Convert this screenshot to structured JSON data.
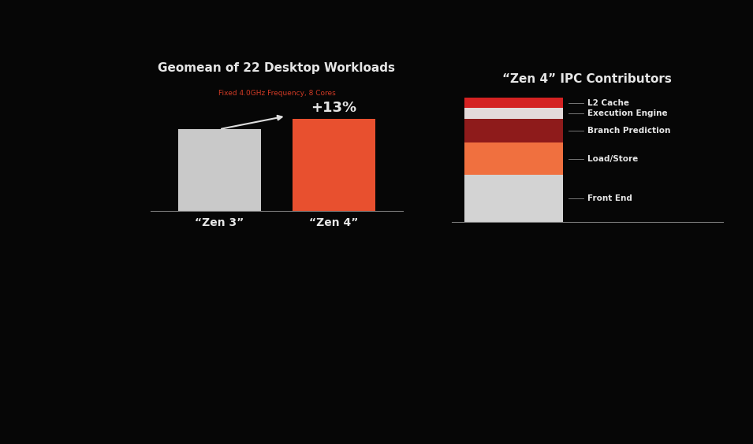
{
  "chart_data": [
    {
      "type": "bar",
      "title": "Geomean of 22 Desktop Workloads",
      "subtitle": "Fixed 4.0GHz Frequency, 8 Cores",
      "categories": [
        "“Zen 3”",
        "“Zen 4”"
      ],
      "values": [
        100,
        113
      ],
      "colors": [
        "#c9c9c9",
        "#e8502f"
      ],
      "ylim": [
        0,
        125
      ],
      "tick_labels": "x",
      "annotations": [
        "+13%"
      ]
    },
    {
      "type": "bar",
      "title": "“Zen 4” IPC Contributors",
      "stacked": true,
      "categories": [
        null
      ],
      "series": [
        {
          "name": "Front End",
          "color": "#d3d3d3",
          "values": [
            4.9
          ]
        },
        {
          "name": "Load/Store",
          "color": "#f0703f",
          "values": [
            3.4
          ]
        },
        {
          "name": "Branch Prediction",
          "color": "#8e1b1b",
          "values": [
            2.5
          ]
        },
        {
          "name": "Execution Engine",
          "color": "#e3dada",
          "values": [
            1.1
          ]
        },
        {
          "name": "L2 Cache",
          "color": "#d42222",
          "values": [
            1.1
          ]
        }
      ],
      "ylim": [
        0,
        13
      ],
      "tick_labels": false
    }
  ]
}
